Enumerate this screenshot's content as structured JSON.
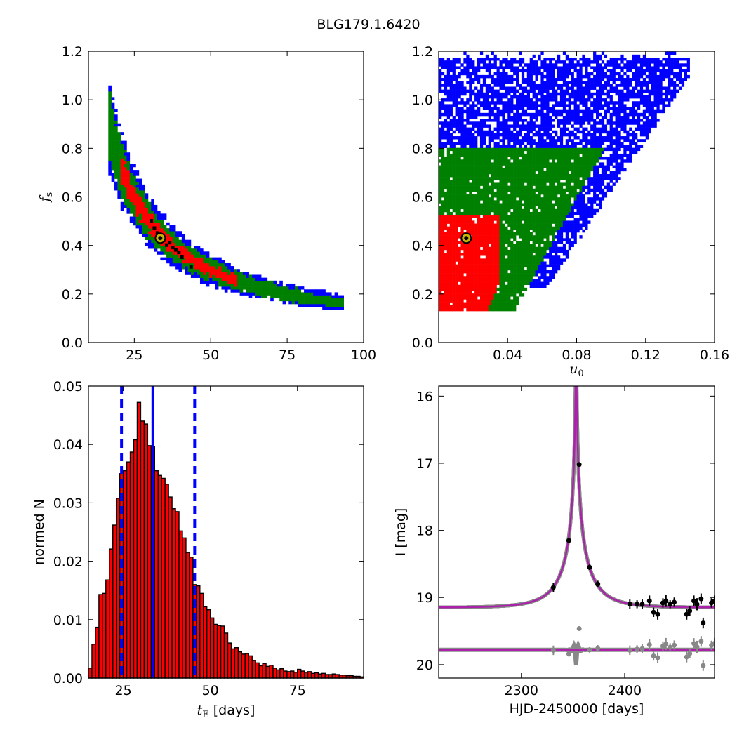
{
  "figure_title": "BLG179.1.6420",
  "chart_data": [
    {
      "type": "heatmap",
      "panel": "top-left",
      "xlabel": "",
      "ylabel_symbol": "f",
      "ylabel_sub": "s",
      "xlim": [
        10,
        100
      ],
      "ylim": [
        0.0,
        1.2
      ],
      "xticks": [
        "25",
        "50",
        "75",
        "100"
      ],
      "yticks": [
        "0.0",
        "0.2",
        "0.4",
        "0.6",
        "0.8",
        "1.0",
        "1.2"
      ],
      "levels": [
        "black",
        "red",
        "green",
        "blue"
      ],
      "colors": {
        "blue": "#0000ff",
        "green": "#008000",
        "red": "#ff0000",
        "black": "#000000"
      },
      "curve_model": "fs ≈ 14.5 / tE",
      "tE_range": [
        16.5,
        93
      ],
      "best_fit": {
        "x": 33.5,
        "y": 0.43,
        "color": "#c8b400"
      }
    },
    {
      "type": "heatmap",
      "panel": "top-right",
      "xlabel_symbol": "u",
      "xlabel_sub": "0",
      "xlim": [
        0.0,
        0.16
      ],
      "ylim": [
        0.0,
        1.2
      ],
      "xticks": [
        "0.04",
        "0.08",
        "0.12",
        "0.16"
      ],
      "yticks": [
        "0.0",
        "0.2",
        "0.4",
        "0.6",
        "0.8",
        "1.0",
        "1.2"
      ],
      "levels": [
        "red",
        "green",
        "blue"
      ],
      "colors": {
        "blue": "#0000ff",
        "green": "#008000",
        "red": "#ff0000"
      },
      "best_fit": {
        "x": 0.016,
        "y": 0.43,
        "color": "#c8b400"
      }
    },
    {
      "type": "bar",
      "panel": "bottom-left",
      "xlabel_symbol": "t",
      "xlabel_sub": "E",
      "xlabel_suffix": " [days]",
      "ylabel": "normed N",
      "xlim": [
        15,
        94
      ],
      "ylim": [
        0.0,
        0.05
      ],
      "xticks": [
        "25",
        "50",
        "75"
      ],
      "yticks": [
        "0.00",
        "0.01",
        "0.02",
        "0.03",
        "0.04",
        "0.05"
      ],
      "bin_width": 1.0,
      "bin_start": 15,
      "values": [
        0.0017,
        0.0058,
        0.0087,
        0.0143,
        0.0145,
        0.0168,
        0.0221,
        0.0262,
        0.0308,
        0.035,
        0.0355,
        0.037,
        0.0387,
        0.0408,
        0.0472,
        0.044,
        0.0435,
        0.0398,
        0.0397,
        0.0355,
        0.0347,
        0.0342,
        0.0332,
        0.031,
        0.029,
        0.0285,
        0.0252,
        0.024,
        0.0215,
        0.0207,
        0.016,
        0.0158,
        0.0145,
        0.0122,
        0.0117,
        0.0103,
        0.0092,
        0.009,
        0.0089,
        0.0077,
        0.006,
        0.005,
        0.0052,
        0.0045,
        0.0041,
        0.0042,
        0.0038,
        0.003,
        0.0026,
        0.0021,
        0.0025,
        0.002,
        0.0022,
        0.0017,
        0.0014,
        0.0016,
        0.0012,
        0.0011,
        0.0012,
        0.001,
        0.0015,
        0.0012,
        0.001,
        0.0011,
        0.0008,
        0.0009,
        0.0007,
        0.0008,
        0.0006,
        0.0006,
        0.0007,
        0.0006,
        0.0005,
        0.0005,
        0.0004,
        0.0004,
        0.0003,
        0.0003,
        0.0002
      ],
      "bar_color": "#ff0000",
      "median_line": 33.5,
      "dashed_lines": [
        24.5,
        45.5
      ],
      "line_color": "#0000ff"
    },
    {
      "type": "line",
      "panel": "bottom-right",
      "xlabel": "HJD-2450000 [days]",
      "ylabel": "I [mag]",
      "xlim": [
        2220,
        2487
      ],
      "ylim": [
        20.2,
        15.85
      ],
      "xticks": [
        "2300",
        "2400"
      ],
      "yticks": [
        "16",
        "17",
        "18",
        "19",
        "20"
      ],
      "model": {
        "t0": 2353,
        "tE": 33.5,
        "u0": 0.016,
        "baseline": 19.15,
        "color": "#aa22aa"
      },
      "residual_offset": 19.78,
      "points": [
        {
          "x": 2331,
          "y": 18.85,
          "e": 0.07
        },
        {
          "x": 2346,
          "y": 18.15,
          "e": 0.04
        },
        {
          "x": 2356,
          "y": 17.02,
          "e": 0.03
        },
        {
          "x": 2366,
          "y": 18.55,
          "e": 0.04
        },
        {
          "x": 2374,
          "y": 18.8,
          "e": 0.05
        },
        {
          "x": 2405,
          "y": 19.1,
          "e": 0.07
        },
        {
          "x": 2412,
          "y": 19.1,
          "e": 0.06
        },
        {
          "x": 2417,
          "y": 19.1,
          "e": 0.07
        },
        {
          "x": 2424,
          "y": 19.05,
          "e": 0.08
        },
        {
          "x": 2428,
          "y": 19.22,
          "e": 0.07
        },
        {
          "x": 2432,
          "y": 19.25,
          "e": 0.08
        },
        {
          "x": 2437,
          "y": 19.08,
          "e": 0.07
        },
        {
          "x": 2440,
          "y": 19.05,
          "e": 0.09
        },
        {
          "x": 2444,
          "y": 19.1,
          "e": 0.06
        },
        {
          "x": 2448,
          "y": 19.07,
          "e": 0.07
        },
        {
          "x": 2460,
          "y": 19.25,
          "e": 0.08
        },
        {
          "x": 2463,
          "y": 19.2,
          "e": 0.07
        },
        {
          "x": 2467,
          "y": 19.05,
          "e": 0.08
        },
        {
          "x": 2470,
          "y": 19.1,
          "e": 0.09
        },
        {
          "x": 2474,
          "y": 19.02,
          "e": 0.08
        },
        {
          "x": 2476,
          "y": 19.38,
          "e": 0.08
        },
        {
          "x": 2484,
          "y": 19.08,
          "e": 0.07
        },
        {
          "x": 2487,
          "y": 19.05,
          "e": 0.08
        }
      ]
    }
  ]
}
